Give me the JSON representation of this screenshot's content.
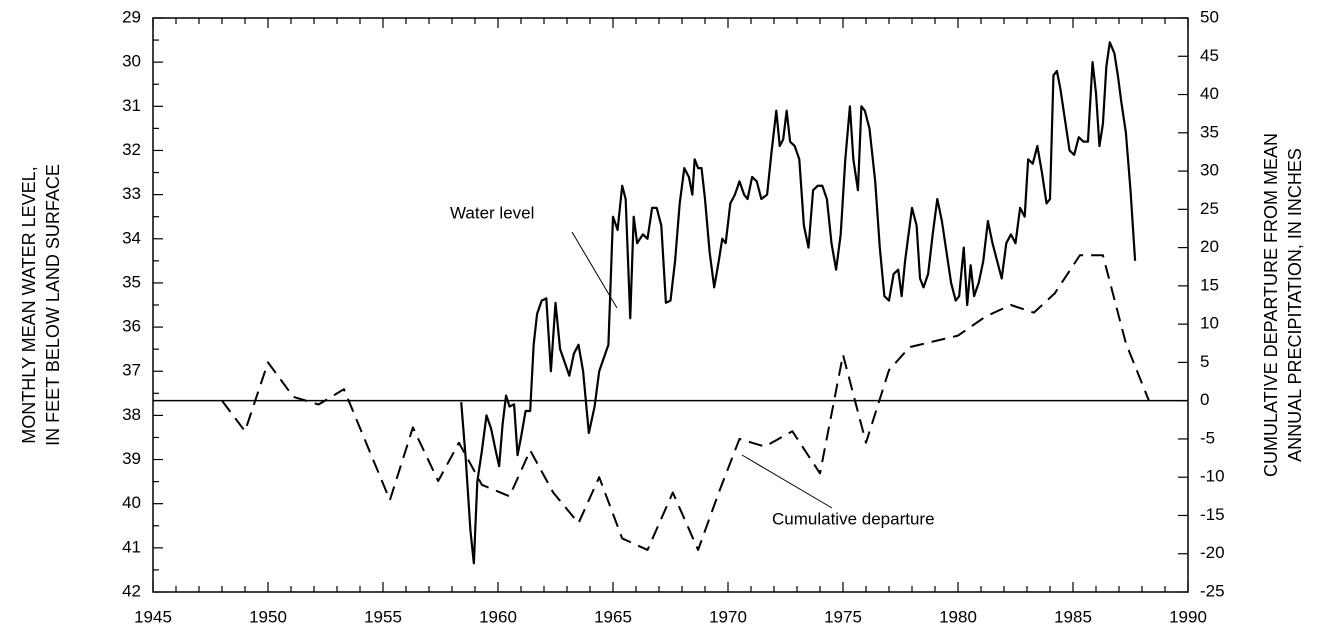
{
  "chart_data": {
    "type": "line",
    "xlim": [
      1945,
      1990
    ],
    "xticks": [
      1945,
      1950,
      1955,
      1960,
      1965,
      1970,
      1975,
      1980,
      1985,
      1990
    ],
    "ylim": [
      42,
      29
    ],
    "yticks": [
      29,
      30,
      31,
      32,
      33,
      34,
      35,
      36,
      37,
      38,
      39,
      40,
      41,
      42
    ],
    "y2lim": [
      -25,
      50
    ],
    "y2ticks": [
      -25,
      -20,
      -15,
      -10,
      -5,
      0,
      5,
      10,
      15,
      20,
      25,
      30,
      35,
      40,
      45,
      50
    ],
    "ylabel": [
      "MONTHLY MEAN WATER LEVEL,",
      "IN FEET BELOW LAND SURFACE"
    ],
    "y2label": [
      "CUMULATIVE DEPARTURE FROM MEAN",
      "ANNUAL PRECIPITATION, IN INCHES"
    ],
    "reference_line": {
      "axis": "y2",
      "value": 0
    },
    "series": [
      {
        "name": "Water level",
        "color": "#000000",
        "line_style": "solid",
        "axis": "y",
        "x": [
          1958.4,
          1958.6,
          1958.8,
          1958.95,
          1959.1,
          1959.3,
          1959.5,
          1959.7,
          1959.9,
          1960.05,
          1960.2,
          1960.35,
          1960.5,
          1960.7,
          1960.85,
          1961.0,
          1961.2,
          1961.4,
          1961.55,
          1961.7,
          1961.9,
          1962.1,
          1962.3,
          1962.5,
          1962.7,
          1962.9,
          1963.1,
          1963.3,
          1963.5,
          1963.7,
          1963.95,
          1964.2,
          1964.4,
          1964.6,
          1964.8,
          1965.0,
          1965.2,
          1965.4,
          1965.55,
          1965.75,
          1965.9,
          1966.05,
          1966.3,
          1966.5,
          1966.7,
          1966.9,
          1967.1,
          1967.3,
          1967.5,
          1967.7,
          1967.9,
          1968.1,
          1968.3,
          1968.45,
          1968.55,
          1968.7,
          1968.85,
          1969.0,
          1969.2,
          1969.4,
          1969.6,
          1969.75,
          1969.9,
          1970.1,
          1970.3,
          1970.5,
          1970.7,
          1970.85,
          1971.05,
          1971.25,
          1971.45,
          1971.7,
          1971.9,
          1972.1,
          1972.25,
          1972.4,
          1972.55,
          1972.7,
          1972.9,
          1973.1,
          1973.3,
          1973.5,
          1973.7,
          1973.9,
          1974.1,
          1974.3,
          1974.5,
          1974.7,
          1974.9,
          1975.1,
          1975.3,
          1975.45,
          1975.65,
          1975.8,
          1975.95,
          1976.15,
          1976.4,
          1976.6,
          1976.8,
          1977.0,
          1977.2,
          1977.4,
          1977.55,
          1977.7,
          1977.9,
          1978.0,
          1978.2,
          1978.35,
          1978.5,
          1978.7,
          1978.9,
          1979.1,
          1979.3,
          1979.5,
          1979.7,
          1979.9,
          1980.05,
          1980.25,
          1980.4,
          1980.55,
          1980.7,
          1980.9,
          1981.1,
          1981.3,
          1981.5,
          1981.7,
          1981.9,
          1982.1,
          1982.3,
          1982.5,
          1982.7,
          1982.9,
          1983.05,
          1983.25,
          1983.45,
          1983.65,
          1983.85,
          1984.0,
          1984.15,
          1984.3,
          1984.45,
          1984.65,
          1984.85,
          1985.05,
          1985.25,
          1985.45,
          1985.65,
          1985.85,
          1986.0,
          1986.15,
          1986.3,
          1986.45,
          1986.6,
          1986.8,
          1986.95,
          1987.1,
          1987.3,
          1987.5,
          1987.7
        ],
        "values": [
          37.7,
          39.0,
          40.6,
          41.35,
          39.5,
          38.8,
          38.0,
          38.3,
          38.8,
          39.15,
          38.2,
          37.55,
          37.8,
          37.75,
          38.9,
          38.5,
          37.9,
          37.9,
          36.4,
          35.7,
          35.4,
          35.35,
          37.0,
          35.45,
          36.5,
          36.8,
          37.1,
          36.6,
          36.4,
          37.0,
          38.4,
          37.8,
          37.0,
          36.7,
          36.4,
          33.5,
          33.8,
          32.8,
          33.1,
          35.8,
          33.5,
          34.1,
          33.9,
          34.0,
          33.3,
          33.3,
          33.7,
          35.45,
          35.4,
          34.5,
          33.2,
          32.4,
          32.6,
          33.0,
          32.2,
          32.4,
          32.4,
          33.1,
          34.3,
          35.1,
          34.5,
          34.0,
          34.1,
          33.2,
          33.0,
          32.7,
          33.0,
          33.1,
          32.6,
          32.7,
          33.1,
          33.0,
          32.0,
          31.1,
          31.9,
          31.75,
          31.1,
          31.8,
          31.9,
          32.2,
          33.7,
          34.2,
          32.9,
          32.8,
          32.8,
          33.1,
          34.1,
          34.7,
          33.9,
          32.2,
          31.0,
          32.2,
          32.9,
          31.0,
          31.1,
          31.5,
          32.7,
          34.2,
          35.3,
          35.4,
          34.8,
          34.7,
          35.3,
          34.5,
          33.7,
          33.3,
          33.7,
          34.9,
          35.1,
          34.8,
          33.9,
          33.1,
          33.6,
          34.3,
          35.0,
          35.4,
          35.3,
          34.2,
          35.5,
          34.6,
          35.3,
          35.0,
          34.5,
          33.6,
          34.1,
          34.5,
          34.9,
          34.1,
          33.9,
          34.1,
          33.3,
          33.5,
          32.2,
          32.3,
          31.9,
          32.5,
          33.2,
          33.1,
          30.3,
          30.2,
          30.6,
          31.3,
          32.0,
          32.1,
          31.7,
          31.8,
          31.8,
          30.0,
          30.7,
          31.9,
          31.4,
          30.1,
          29.55,
          29.8,
          30.3,
          30.9,
          31.6,
          32.9,
          34.5
        ]
      },
      {
        "name": "Cumulative departure",
        "color": "#000000",
        "line_style": "dashed",
        "axis": "y2",
        "x": [
          1948,
          1949,
          1950,
          1951.1,
          1952.2,
          1953.3,
          1955.3,
          1956.3,
          1957.4,
          1958.3,
          1959.3,
          1960.5,
          1961.4,
          1962.4,
          1963.5,
          1964.4,
          1965.4,
          1966.5,
          1967.6,
          1968.7,
          1969.6,
          1970.5,
          1971.6,
          1972.8,
          1974,
          1975,
          1976,
          1977,
          1977.9,
          1980,
          1981.2,
          1982.3,
          1983.3,
          1984.2,
          1985.3,
          1986.3,
          1987.3,
          1988.3
        ],
        "values": [
          0,
          -4,
          5,
          0.5,
          -0.5,
          1.5,
          -13,
          -3.5,
          -10.5,
          -5.5,
          -11,
          -12.5,
          -6.5,
          -12,
          -16,
          -10,
          -18,
          -19.5,
          -12,
          -19.5,
          -12,
          -5,
          -6,
          -4,
          -9.5,
          6,
          -5.5,
          4,
          7,
          8.5,
          11,
          12.5,
          11.5,
          14,
          19,
          19,
          7.5,
          0
        ]
      }
    ]
  }
}
